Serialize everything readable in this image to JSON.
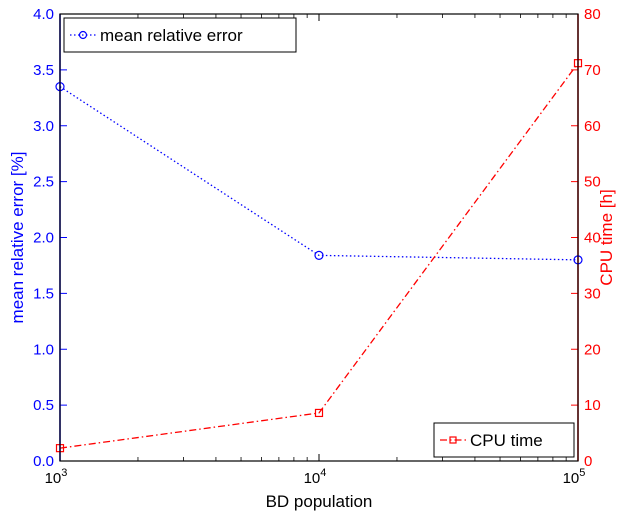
{
  "colors": {
    "left_axis": "#0000ff",
    "right_axis": "#ff0000",
    "frame": "#000000",
    "background": "#ffffff"
  },
  "chart_data": {
    "type": "line",
    "xlabel": "BD population",
    "x_scale": "log",
    "xlim": [
      1000,
      100000
    ],
    "x_ticks": [
      {
        "value": 1000,
        "base": "10",
        "exp": "3"
      },
      {
        "value": 10000,
        "base": "10",
        "exp": "4"
      },
      {
        "value": 100000,
        "base": "10",
        "exp": "5"
      }
    ],
    "ylabel_left": "mean relative error [%]",
    "ylim_left": [
      0,
      4
    ],
    "yticks_left": [
      "0.0",
      "0.5",
      "1.0",
      "1.5",
      "2.0",
      "2.5",
      "3.0",
      "3.5",
      "4.0"
    ],
    "ylabel_right": "CPU time [h]",
    "ylim_right": [
      0,
      80
    ],
    "yticks_right": [
      "0",
      "10",
      "20",
      "30",
      "40",
      "50",
      "60",
      "70",
      "80"
    ],
    "grid": false,
    "series": [
      {
        "name": "mean relative error",
        "axis": "left",
        "color": "#0000ff",
        "marker": "circle",
        "line_style": "dotted",
        "legend_position": "top-left",
        "x": [
          1000,
          10000,
          100000
        ],
        "values": [
          3.35,
          1.84,
          1.8
        ]
      },
      {
        "name": "CPU time",
        "axis": "right",
        "color": "#ff0000",
        "marker": "square",
        "line_style": "dash-dot",
        "legend_position": "bottom-right",
        "x": [
          1000,
          10000,
          100000
        ],
        "values": [
          2.3,
          8.6,
          71.2
        ]
      }
    ]
  }
}
